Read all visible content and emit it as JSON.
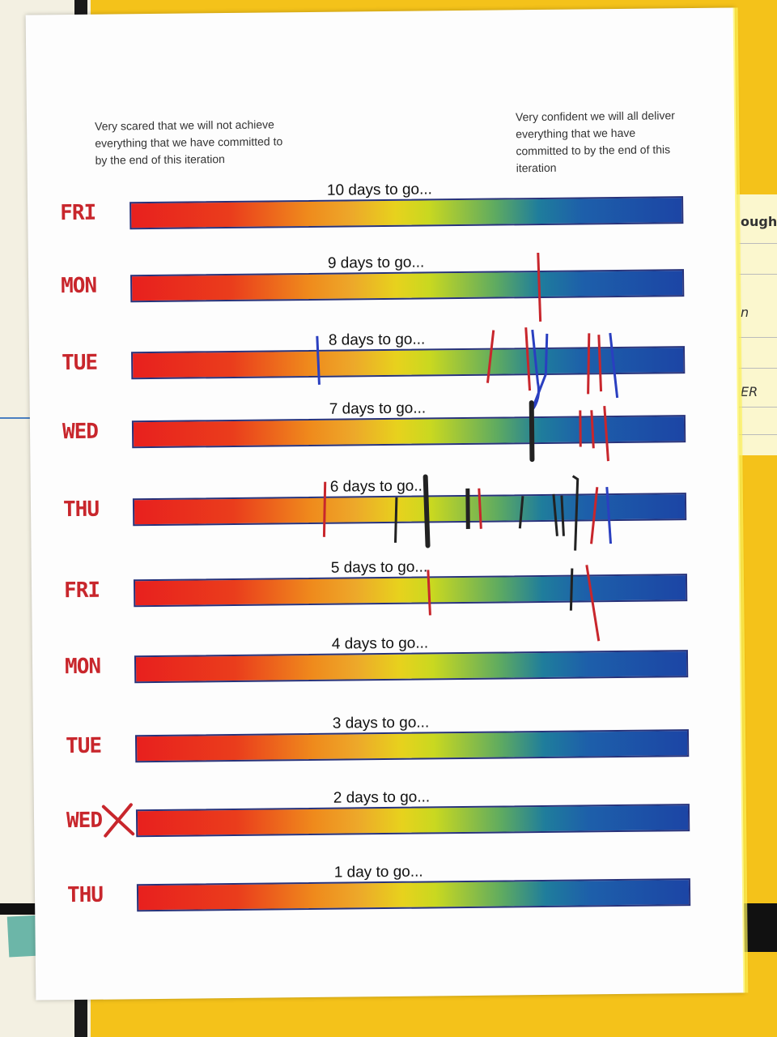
{
  "wall_note": {
    "fragments": [
      "ough",
      "n",
      "ER"
    ]
  },
  "sheet": {
    "caption_left": "Very scared that we will not achieve everything that we have committed to by the end of this iteration",
    "caption_right": "Very confident we will all deliver everything that we have committed to by the end of this iteration",
    "rows": [
      {
        "day": "FRI",
        "label": "10 days to go..."
      },
      {
        "day": "MON",
        "label": "9 days to go..."
      },
      {
        "day": "TUE",
        "label": "8 days to go..."
      },
      {
        "day": "WED",
        "label": "7 days to go..."
      },
      {
        "day": "THU",
        "label": "6 days to go..."
      },
      {
        "day": "FRI",
        "label": "5 days to go..."
      },
      {
        "day": "MON",
        "label": "4 days to go..."
      },
      {
        "day": "TUE",
        "label": "3 days to go..."
      },
      {
        "day": "WED",
        "label": "2 days to go..."
      },
      {
        "day": "THU",
        "label": "1 day to go..."
      }
    ]
  },
  "colors": {
    "marker_red": "#c8262c",
    "marker_blue": "#2a3fc0",
    "marker_black": "#222222",
    "bar_border": "#27327a"
  }
}
